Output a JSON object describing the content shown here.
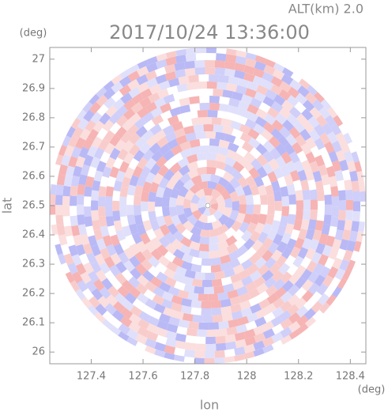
{
  "chart_data": {
    "type": "radar",
    "title": "2017/10/24 13:36:00",
    "annotation": "ALT(km) 2.0",
    "xlabel": "lon",
    "ylabel": "lat",
    "xunit": "(deg)",
    "yunit": "(deg)",
    "xlim": [
      127.24,
      128.46
    ],
    "xticks": [
      127.4,
      127.6,
      127.8,
      128.0,
      128.2,
      128.4
    ],
    "ylim": [
      25.96,
      27.04
    ],
    "yticks": [
      26.0,
      26.1,
      26.2,
      26.3,
      26.4,
      26.5,
      26.6,
      26.7,
      26.8,
      26.9,
      27.0
    ]
  }
}
